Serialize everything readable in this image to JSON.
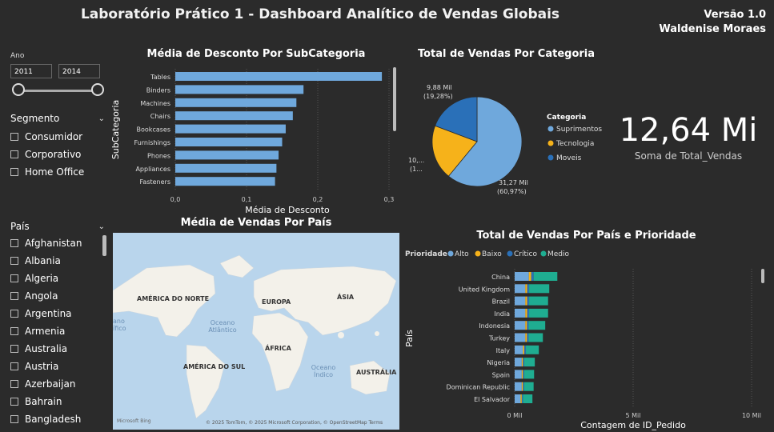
{
  "header": {
    "title": "Laboratório Prático 1 - Dashboard Analítico de Vendas Globais",
    "version": "Versão 1.0",
    "author": "Waldenise Moraes"
  },
  "filters": {
    "year_label": "Ano",
    "year_start": "2011",
    "year_end": "2014",
    "segment_title": "Segmento",
    "segments": [
      "Consumidor",
      "Corporativo",
      "Home Office"
    ],
    "country_title": "País",
    "countries": [
      "Afghanistan",
      "Albania",
      "Algeria",
      "Angola",
      "Argentina",
      "Armenia",
      "Australia",
      "Austria",
      "Azerbaijan",
      "Bahrain",
      "Bangladesh"
    ]
  },
  "discount_chart": {
    "title": "Média de Desconto Por SubCategoria",
    "ylabel": "SubCategoria",
    "xlabel": "Média de Desconto",
    "ticks": [
      "0,0",
      "0,1",
      "0,2",
      "0,3"
    ]
  },
  "pie_chart": {
    "title": "Total de Vendas Por Categoria",
    "legend_title": "Categoria",
    "label_moveis": "9,88 Mil",
    "label_moveis_pct": "(19,28%)",
    "label_tec": "10,...",
    "label_tec_pct": "(1...",
    "label_sup": "31,27 Mil",
    "label_sup_pct": "(60,97%)"
  },
  "kpi": {
    "value": "12,64 Mi",
    "label": "Soma de Total_Vendas"
  },
  "map": {
    "title": "Média de Vendas Por País",
    "labels": [
      "AMÉRICA DO NORTE",
      "EUROPA",
      "ÁSIA",
      "ÁFRICA",
      "AMÉRICA DO SUL",
      "AUSTRÁLIA"
    ],
    "ocean_atl_1": "Oceano",
    "ocean_atl_2": "Atlântico",
    "ocean_ind_1": "Oceano",
    "ocean_ind_2": "Índico",
    "left_edge_1": "ano",
    "left_edge_2": "ífico",
    "bing": "Microsoft Bing",
    "copyright": "© 2025 TomTom, © 2025 Microsoft Corporation, © OpenStreetMap  Terms"
  },
  "stacked_chart": {
    "title": "Total de Vendas Por País e Prioridade",
    "legend_title": "Prioridade",
    "ylabel": "País",
    "xlabel": "Contagem de ID_Pedido",
    "ticks": [
      "0 Mil",
      "5 Mil",
      "10 Mil"
    ]
  },
  "chart_data": [
    {
      "type": "bar",
      "orientation": "horizontal",
      "title": "Média de Desconto Por SubCategoria",
      "xlabel": "Média de Desconto",
      "ylabel": "SubCategoria",
      "categories": [
        "Tables",
        "Binders",
        "Machines",
        "Chairs",
        "Bookcases",
        "Furnishings",
        "Phones",
        "Appliances",
        "Fasteners"
      ],
      "values": [
        0.29,
        0.18,
        0.17,
        0.165,
        0.155,
        0.15,
        0.145,
        0.142,
        0.14
      ],
      "xlim": [
        0,
        0.3
      ],
      "color": "#6fa8dc"
    },
    {
      "type": "pie",
      "title": "Total de Vendas Por Categoria",
      "categories": [
        "Suprimentos",
        "Tecnologia",
        "Moveis"
      ],
      "values": [
        60.97,
        19.75,
        19.28
      ],
      "colors": [
        "#6fa8dc",
        "#f6b21a",
        "#2a70b8"
      ],
      "legend": "right"
    },
    {
      "type": "bar",
      "orientation": "horizontal",
      "stacked": true,
      "title": "Total de Vendas Por País e Prioridade",
      "xlabel": "Contagem de ID_Pedido",
      "ylabel": "País",
      "categories": [
        "China",
        "United Kingdom",
        "Brazil",
        "India",
        "Indonesia",
        "Turkey",
        "Italy",
        "Nigeria",
        "Spain",
        "Dominican Republic",
        "El Salvador"
      ],
      "series": [
        {
          "name": "Alto",
          "values": [
            0.6,
            0.45,
            0.45,
            0.45,
            0.45,
            0.45,
            0.35,
            0.3,
            0.3,
            0.3,
            0.25
          ],
          "color": "#6fa8dc"
        },
        {
          "name": "Baixo",
          "values": [
            0.1,
            0.08,
            0.08,
            0.08,
            0.07,
            0.07,
            0.06,
            0.05,
            0.05,
            0.05,
            0.05
          ],
          "color": "#f6b21a"
        },
        {
          "name": "Crítico",
          "values": [
            0.1,
            0.08,
            0.08,
            0.08,
            0.07,
            0.07,
            0.06,
            0.05,
            0.05,
            0.05,
            0.05
          ],
          "color": "#2a70b8"
        },
        {
          "name": "Medio",
          "values": [
            1.0,
            0.85,
            0.8,
            0.8,
            0.7,
            0.6,
            0.55,
            0.45,
            0.42,
            0.4,
            0.4
          ],
          "color": "#1fad91"
        }
      ],
      "xlim": [
        0,
        10
      ],
      "legend": "top-left"
    }
  ]
}
